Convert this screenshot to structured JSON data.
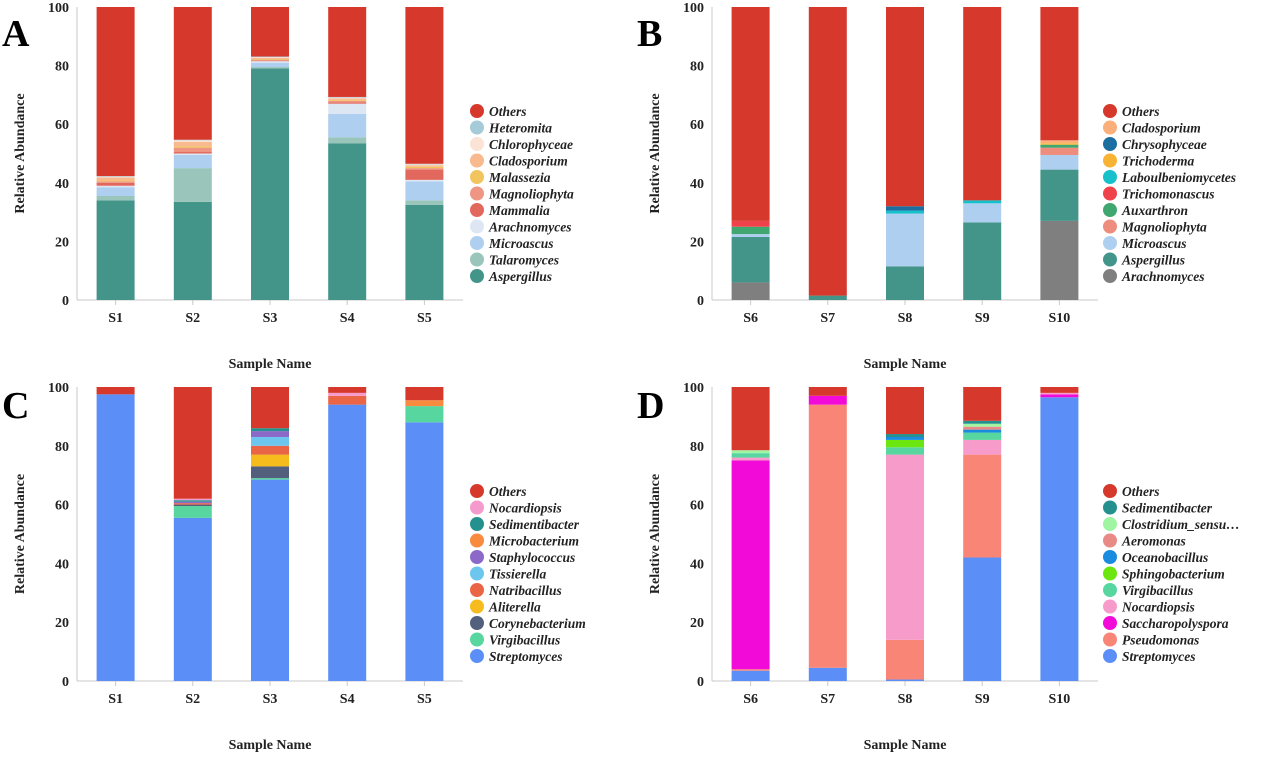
{
  "chart_data": [
    {
      "panel": "A",
      "type": "bar",
      "stacked": true,
      "xlabel": "Sample Name",
      "ylabel": "Relative Abundance",
      "ylim": [
        0,
        100
      ],
      "yticks": [
        0,
        20,
        40,
        60,
        80,
        100
      ],
      "categories": [
        "S1",
        "S2",
        "S3",
        "S4",
        "S5"
      ],
      "series": [
        {
          "name": "Aspergillus",
          "color": "#43958a",
          "values": [
            34,
            33.5,
            79,
            53.5,
            32.5
          ]
        },
        {
          "name": "Talaromyces",
          "color": "#99c5ba",
          "values": [
            1.5,
            11.5,
            0.5,
            2,
            1.5
          ]
        },
        {
          "name": "Microascus",
          "color": "#aecfef",
          "values": [
            3,
            4.5,
            1.5,
            8,
            6.5
          ]
        },
        {
          "name": "Arachnomyces",
          "color": "#dde7f3",
          "values": [
            0.5,
            0.5,
            0.5,
            3.5,
            0.5
          ]
        },
        {
          "name": "Mammalia",
          "color": "#e2675d",
          "values": [
            1,
            0.5,
            0.2,
            0.5,
            3.5
          ]
        },
        {
          "name": "Magnoliophyta",
          "color": "#ee9583",
          "values": [
            0.5,
            1.5,
            0.2,
            0.5,
            0.5
          ]
        },
        {
          "name": "Malassezia",
          "color": "#f2c45e",
          "values": [
            0.3,
            0.5,
            0.2,
            0.3,
            0.5
          ]
        },
        {
          "name": "Cladosporium",
          "color": "#f8b98e",
          "values": [
            1,
            1.5,
            0.5,
            0.5,
            0.5
          ]
        },
        {
          "name": "Chlorophyceae",
          "color": "#fbe3d5",
          "values": [
            0.3,
            0.5,
            0.3,
            0.3,
            0.3
          ]
        },
        {
          "name": "Heteromita",
          "color": "#a5cad8",
          "values": [
            0.2,
            0.2,
            0.2,
            0.2,
            0.2
          ]
        },
        {
          "name": "Others",
          "color": "#d6392c",
          "values": [
            57.7,
            45.3,
            16.9,
            30.7,
            53.5
          ]
        }
      ]
    },
    {
      "panel": "B",
      "type": "bar",
      "stacked": true,
      "xlabel": "Sample Name",
      "ylabel": "Relative Abundance",
      "ylim": [
        0,
        100
      ],
      "yticks": [
        0,
        20,
        40,
        60,
        80,
        100
      ],
      "categories": [
        "S6",
        "S7",
        "S8",
        "S9",
        "S10"
      ],
      "series": [
        {
          "name": "Arachnomyces",
          "color": "#7f7f7f",
          "values": [
            6,
            0,
            0,
            0,
            27
          ]
        },
        {
          "name": "Aspergillus",
          "color": "#43958a",
          "values": [
            15.5,
            1.5,
            11.5,
            26.5,
            17.5
          ]
        },
        {
          "name": "Microascus",
          "color": "#aecfef",
          "values": [
            1,
            0,
            18,
            6.5,
            5
          ]
        },
        {
          "name": "Magnoliophyta",
          "color": "#ee8d7d",
          "values": [
            0,
            0,
            0,
            0,
            2.5
          ]
        },
        {
          "name": "Auxarthron",
          "color": "#3fa76f",
          "values": [
            2.5,
            0,
            0,
            0,
            1
          ]
        },
        {
          "name": "Trichomonascus",
          "color": "#f0424a",
          "values": [
            2,
            0,
            0,
            0,
            0
          ]
        },
        {
          "name": "Laboulbeniomycetes",
          "color": "#16c1cc",
          "values": [
            0,
            0,
            1,
            1,
            0
          ]
        },
        {
          "name": "Trichoderma",
          "color": "#f9b334",
          "values": [
            0,
            0,
            0,
            0,
            0.5
          ]
        },
        {
          "name": "Chrysophyceae",
          "color": "#1c6ea0",
          "values": [
            0,
            0,
            1.5,
            0,
            0
          ]
        },
        {
          "name": "Cladosporium",
          "color": "#fbb07c",
          "values": [
            0,
            0,
            0,
            0,
            1
          ]
        },
        {
          "name": "Others",
          "color": "#d6392c",
          "values": [
            73,
            98.5,
            68,
            66,
            45.5
          ]
        }
      ]
    },
    {
      "panel": "C",
      "type": "bar",
      "stacked": true,
      "xlabel": "Sample Name",
      "ylabel": "Relative Abundance",
      "ylim": [
        0,
        100
      ],
      "yticks": [
        0,
        20,
        40,
        60,
        80,
        100
      ],
      "categories": [
        "S1",
        "S2",
        "S3",
        "S4",
        "S5"
      ],
      "series": [
        {
          "name": "Streptomyces",
          "color": "#5b8ff7",
          "values": [
            97.5,
            55.5,
            68.5,
            94,
            88
          ]
        },
        {
          "name": "Virgibacillus",
          "color": "#58d6a0",
          "values": [
            0,
            4,
            0.5,
            0,
            5.5
          ]
        },
        {
          "name": "Corynebacterium",
          "color": "#52607d",
          "values": [
            0,
            0.5,
            4,
            0,
            0
          ]
        },
        {
          "name": "Aliterella",
          "color": "#f6bb1d",
          "values": [
            0,
            0,
            4,
            0,
            0
          ]
        },
        {
          "name": "Natribacillus",
          "color": "#ea6446",
          "values": [
            0,
            0.5,
            3,
            3,
            0
          ]
        },
        {
          "name": "Tissierella",
          "color": "#6cc6ee",
          "values": [
            0,
            0,
            3,
            0,
            0
          ]
        },
        {
          "name": "Staphylococcus",
          "color": "#8c69c9",
          "values": [
            0,
            0.5,
            2,
            0,
            0
          ]
        },
        {
          "name": "Microbacterium",
          "color": "#f98b3f",
          "values": [
            0,
            0,
            0,
            0,
            2
          ]
        },
        {
          "name": "Sedimentibacter",
          "color": "#25918e",
          "values": [
            0,
            0.5,
            1,
            0,
            0
          ]
        },
        {
          "name": "Nocardiopsis",
          "color": "#f59acd",
          "values": [
            0,
            0.5,
            0,
            1,
            0
          ]
        },
        {
          "name": "Others",
          "color": "#d6392c",
          "values": [
            2.5,
            38,
            14,
            2,
            4.5
          ]
        }
      ]
    },
    {
      "panel": "D",
      "type": "bar",
      "stacked": true,
      "xlabel": "Sample Name",
      "ylabel": "Relative Abundance",
      "ylim": [
        0,
        100
      ],
      "yticks": [
        0,
        20,
        40,
        60,
        80,
        100
      ],
      "categories": [
        "S6",
        "S7",
        "S8",
        "S9",
        "S10"
      ],
      "series": [
        {
          "name": "Streptomyces",
          "color": "#5b8ff7",
          "values": [
            3.5,
            4.5,
            0.5,
            42,
            96.5
          ]
        },
        {
          "name": "Pseudomonas",
          "color": "#f98577",
          "values": [
            0.5,
            89.5,
            13.5,
            35,
            0
          ]
        },
        {
          "name": "Saccharopolyspora",
          "color": "#f20bd8",
          "values": [
            71,
            3,
            0,
            0,
            1
          ]
        },
        {
          "name": "Nocardiopsis",
          "color": "#f79cca",
          "values": [
            1,
            0,
            63,
            5,
            0.5
          ]
        },
        {
          "name": "Virgibacillus",
          "color": "#58d6a0",
          "values": [
            1.5,
            0,
            2.5,
            2.5,
            0
          ]
        },
        {
          "name": "Sphingobacterium",
          "color": "#6be60f",
          "values": [
            0,
            0,
            2.5,
            0,
            0
          ]
        },
        {
          "name": "Oceanobacillus",
          "color": "#1a8ce0",
          "values": [
            0,
            0,
            1,
            1,
            0
          ]
        },
        {
          "name": "Aeromonas",
          "color": "#e98a86",
          "values": [
            0,
            0,
            0,
            1,
            0
          ]
        },
        {
          "name": "Clostridium_sensu…",
          "color": "#a0f5a2",
          "values": [
            1,
            0,
            0,
            1,
            0
          ]
        },
        {
          "name": "Sedimentibacter",
          "color": "#25918e",
          "values": [
            0,
            0,
            1,
            1,
            0
          ]
        },
        {
          "name": "Others",
          "color": "#d6392c",
          "values": [
            21.5,
            3,
            16,
            11.5,
            2
          ]
        }
      ]
    }
  ]
}
